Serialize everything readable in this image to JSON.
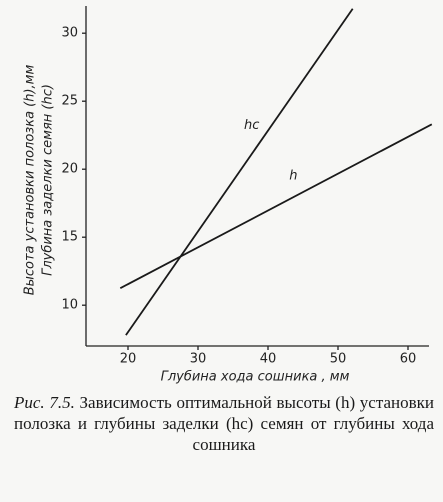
{
  "chart_data": {
    "type": "line",
    "y_label_lines": [
      "Высота установки полозка (h),мм",
      "Глубина заделки семян (hc)"
    ],
    "x_label": "Глубина хода сошника , мм",
    "series": [
      {
        "name": "hc",
        "color": "#1a1a1a",
        "x": [
          19.7,
          52.1
        ],
        "values": [
          7.8,
          31.8
        ]
      },
      {
        "name": "h",
        "color": "#1a1a1a",
        "x": [
          18.9,
          63.4
        ],
        "values": [
          11.25,
          23.3
        ]
      }
    ],
    "xlim": [
      14,
      63
    ],
    "ylim": [
      7,
      32
    ],
    "xticks": [
      20,
      30,
      40,
      50,
      60
    ],
    "yticks": [
      10,
      15,
      20,
      25,
      30
    ],
    "caption_label": "Рис. 7.5.",
    "caption": "Зависимость оптимальной высоты (h) установки полозка и глубины заделки (hc) семян от глубины хода сошника"
  }
}
